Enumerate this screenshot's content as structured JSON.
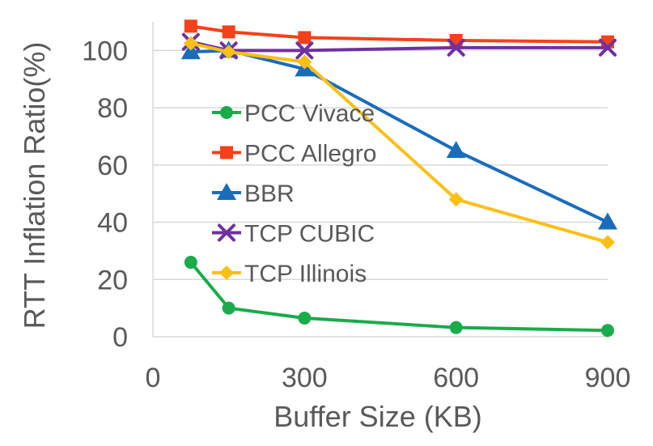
{
  "chart_data": {
    "type": "line",
    "xlabel": "Buffer Size (KB)",
    "ylabel": "RTT Inflation Ratio(%)",
    "xlim": [
      0,
      900
    ],
    "ylim": [
      0,
      110
    ],
    "xticks": [
      "0",
      "300",
      "600",
      "900"
    ],
    "yticks": [
      "0",
      "20",
      "40",
      "60",
      "80",
      "100"
    ],
    "grid": {
      "horizontal": true,
      "vertical": false
    },
    "legend": {
      "placement": "center-left"
    },
    "series": [
      {
        "name": "PCC Vivace",
        "color": "#1aab4b",
        "marker": "circle",
        "x": [
          75,
          150,
          300,
          600,
          900
        ],
        "y": [
          26,
          10,
          6.5,
          3.2,
          2.2
        ]
      },
      {
        "name": "PCC Allegro",
        "color": "#f5411a",
        "marker": "square",
        "x": [
          75,
          150,
          300,
          600,
          900
        ],
        "y": [
          108.5,
          106.5,
          104.5,
          103.5,
          103
        ]
      },
      {
        "name": "BBR",
        "color": "#1a6cbb",
        "marker": "triangle",
        "x": [
          75,
          150,
          300,
          600,
          900
        ],
        "y": [
          99.5,
          100,
          93.5,
          65,
          40
        ]
      },
      {
        "name": "TCP CUBIC",
        "color": "#7030a0",
        "marker": "x",
        "x": [
          75,
          150,
          300,
          600,
          900
        ],
        "y": [
          103,
          100,
          100,
          101,
          101
        ]
      },
      {
        "name": "TCP Illinois",
        "color": "#fbbf15",
        "marker": "diamond",
        "x": [
          75,
          150,
          300,
          600,
          900
        ],
        "y": [
          102.5,
          99.5,
          96,
          48,
          33
        ]
      }
    ]
  }
}
